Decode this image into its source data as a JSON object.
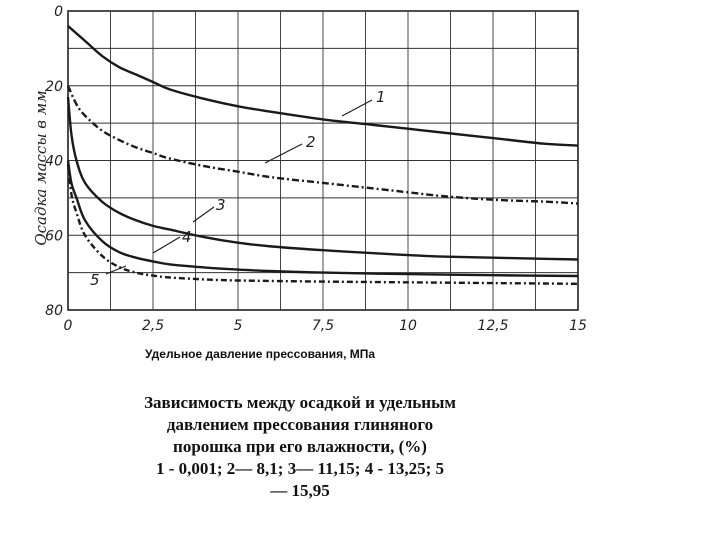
{
  "chart_data": {
    "type": "line",
    "xlabel": "Удельное давление прессования, МПа",
    "ylabel": "Осадка массы в мм",
    "x_ticks": [
      "0",
      "2,5",
      "5",
      "7,5",
      "10",
      "12,5",
      "15"
    ],
    "y_ticks": [
      "0",
      "20",
      "40",
      "60",
      "80"
    ],
    "xlim": [
      0,
      15
    ],
    "ylim": [
      0,
      80
    ],
    "y_inverted": true,
    "grid": true,
    "series": [
      {
        "name": "1",
        "x": [
          0,
          0.5,
          1,
          1.5,
          2,
          2.5,
          3,
          4,
          5,
          6,
          7.5,
          9,
          10,
          11,
          12.5,
          14,
          15
        ],
        "values": [
          4,
          8,
          12,
          15,
          17,
          19,
          21,
          23.5,
          25.5,
          27,
          29,
          30.5,
          31.5,
          32.5,
          34,
          35.5,
          36
        ]
      },
      {
        "name": "2",
        "x": [
          0,
          0.25,
          0.5,
          1,
          1.5,
          2,
          2.5,
          3,
          4,
          5,
          6,
          7.5,
          9,
          10,
          11,
          12.5,
          14,
          15
        ],
        "values": [
          20,
          25,
          28,
          32,
          34.5,
          36.5,
          38,
          39.5,
          41.5,
          43,
          44.5,
          46,
          47.5,
          48.5,
          49.5,
          50.5,
          51,
          51.5
        ]
      },
      {
        "name": "3",
        "x": [
          0,
          0.1,
          0.25,
          0.5,
          1,
          1.5,
          2,
          2.5,
          3,
          4,
          5,
          6,
          7.5,
          9,
          10,
          11,
          12.5,
          14,
          15
        ],
        "values": [
          23,
          33,
          40,
          46,
          51,
          54,
          56,
          57.5,
          58.5,
          60.5,
          62,
          63,
          64,
          64.8,
          65.3,
          65.7,
          66,
          66.3,
          66.5
        ]
      },
      {
        "name": "4",
        "x": [
          0,
          0.1,
          0.25,
          0.5,
          1,
          1.5,
          2,
          2.5,
          3,
          4,
          5,
          6,
          7.5,
          10,
          12.5,
          15
        ],
        "values": [
          40,
          46,
          50,
          56,
          61.5,
          64.5,
          66,
          67,
          67.8,
          68.6,
          69.2,
          69.6,
          70,
          70.4,
          70.7,
          70.9
        ]
      },
      {
        "name": "5",
        "x": [
          0,
          0.1,
          0.25,
          0.5,
          1,
          1.5,
          2,
          2.5,
          3,
          4,
          5,
          7.5,
          10,
          12.5,
          15
        ],
        "values": [
          41,
          49,
          54,
          60,
          65.5,
          68.5,
          70,
          70.8,
          71.3,
          71.8,
          72.1,
          72.4,
          72.6,
          72.8,
          73
        ]
      }
    ]
  },
  "caption": {
    "line1": "Зависимость между осадкой и удельным",
    "line2": "давлением прессования глиняного",
    "line3": "порошка при его влажности, (%)",
    "line4": "1 - 0,001;   2— 8,1;   3— 11,15;  4 -  13,25;  5",
    "line5": "— 15,95"
  }
}
